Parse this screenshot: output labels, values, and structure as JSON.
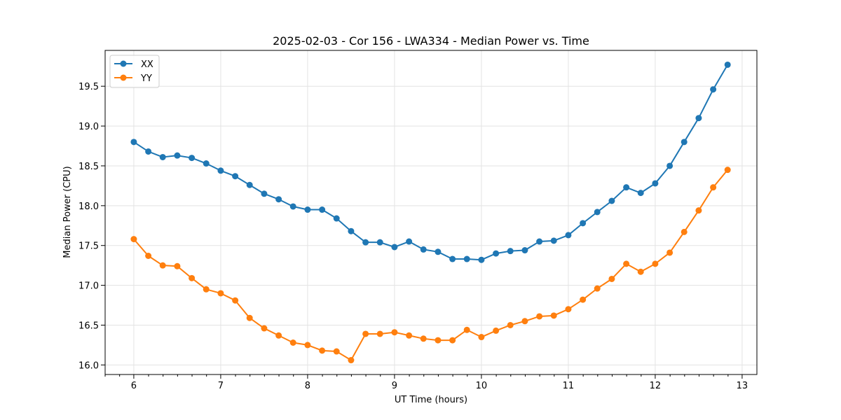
{
  "chart_data": {
    "type": "line",
    "title": "2025-02-03 - Cor 156 - LWA334 - Median Power vs. Time",
    "xlabel": "UT Time (hours)",
    "ylabel": "Median Power (CPU)",
    "xlim": [
      5.67,
      13.17
    ],
    "ylim": [
      15.88,
      19.95
    ],
    "xticks": [
      6,
      7,
      8,
      9,
      10,
      11,
      12,
      13
    ],
    "xtick_labels": [
      "6",
      "7",
      "8",
      "9",
      "10",
      "11",
      "12",
      "13"
    ],
    "minor_xticks_step": 0.1667,
    "yticks": [
      16.0,
      16.5,
      17.0,
      17.5,
      18.0,
      18.5,
      19.0,
      19.5
    ],
    "ytick_labels": [
      "16.0",
      "16.5",
      "17.0",
      "17.5",
      "18.0",
      "18.5",
      "19.0",
      "19.5"
    ],
    "grid": true,
    "legend_position": "top-left",
    "x": [
      6.0,
      6.167,
      6.333,
      6.5,
      6.667,
      6.833,
      7.0,
      7.167,
      7.333,
      7.5,
      7.667,
      7.833,
      8.0,
      8.167,
      8.333,
      8.5,
      8.667,
      8.833,
      9.0,
      9.167,
      9.333,
      9.5,
      9.667,
      9.833,
      10.0,
      10.167,
      10.333,
      10.5,
      10.667,
      10.833,
      11.0,
      11.167,
      11.333,
      11.5,
      11.667,
      11.833,
      12.0,
      12.167,
      12.333,
      12.5,
      12.667,
      12.833
    ],
    "series": [
      {
        "name": "XX",
        "color": "#1f77b4",
        "values": [
          18.8,
          18.68,
          18.61,
          18.63,
          18.6,
          18.53,
          18.44,
          18.37,
          18.26,
          18.15,
          18.08,
          17.99,
          17.95,
          17.95,
          17.84,
          17.68,
          17.54,
          17.54,
          17.48,
          17.55,
          17.45,
          17.42,
          17.33,
          17.33,
          17.32,
          17.4,
          17.43,
          17.44,
          17.55,
          17.56,
          17.63,
          17.78,
          17.92,
          18.06,
          18.23,
          18.16,
          18.28,
          18.5,
          18.8,
          19.1,
          19.46,
          19.77
        ]
      },
      {
        "name": "YY",
        "color": "#ff7f0e",
        "values": [
          17.58,
          17.37,
          17.25,
          17.24,
          17.09,
          16.95,
          16.9,
          16.81,
          16.59,
          16.46,
          16.37,
          16.28,
          16.25,
          16.18,
          16.17,
          16.06,
          16.39,
          16.39,
          16.41,
          16.37,
          16.33,
          16.31,
          16.31,
          16.44,
          16.35,
          16.43,
          16.5,
          16.55,
          16.61,
          16.62,
          16.7,
          16.82,
          16.96,
          17.08,
          17.27,
          17.17,
          17.27,
          17.41,
          17.67,
          17.94,
          18.23,
          18.45
        ]
      }
    ]
  }
}
